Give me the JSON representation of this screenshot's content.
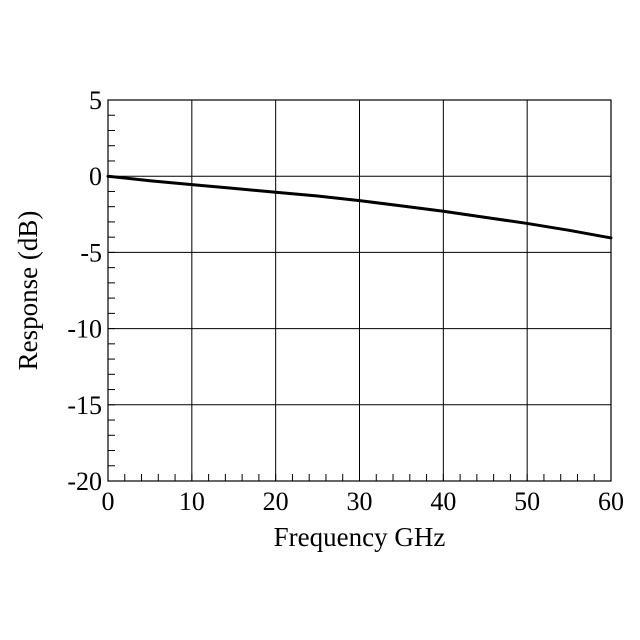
{
  "chart_data": {
    "type": "line",
    "title": "",
    "xlabel": "Frequency GHz",
    "ylabel": "Response (dB)",
    "xlim": [
      0,
      60
    ],
    "ylim": [
      -20,
      5
    ],
    "x_ticks": [
      0,
      10,
      20,
      30,
      40,
      50,
      60
    ],
    "y_ticks": [
      -20,
      -15,
      -10,
      -5,
      0,
      5
    ],
    "x_ticks_labels": [
      "0",
      "10",
      "20",
      "30",
      "40",
      "50",
      "60"
    ],
    "y_ticks_labels": [
      "-20",
      "-15",
      "-10",
      "-5",
      "0",
      "5"
    ],
    "x_minor_step": 2,
    "y_minor_step": 1,
    "grid": true,
    "series": [
      {
        "color": "#000000",
        "x": [
          0,
          5,
          10,
          15,
          20,
          25,
          30,
          35,
          40,
          45,
          50,
          55,
          60
        ],
        "y": [
          0,
          -0.3,
          -0.55,
          -0.8,
          -1.05,
          -1.3,
          -1.6,
          -1.95,
          -2.3,
          -2.7,
          -3.1,
          -3.55,
          -4.05
        ]
      }
    ]
  }
}
